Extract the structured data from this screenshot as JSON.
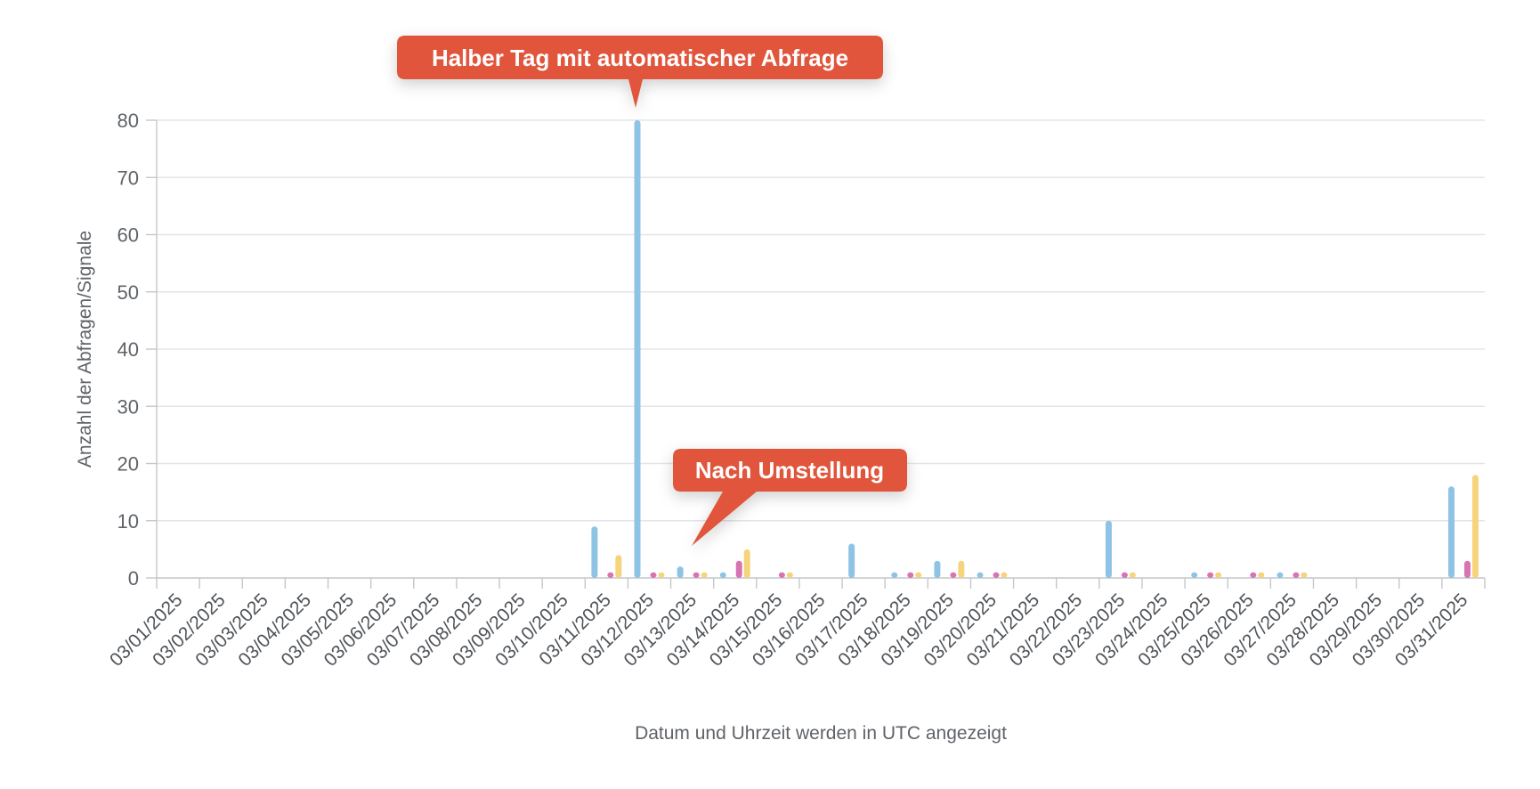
{
  "chart_data": {
    "type": "bar",
    "ylabel": "Anzahl der Abfragen/Signale",
    "xlabel": "Datum und Uhrzeit werden in UTC angezeigt",
    "ylim": [
      0,
      80
    ],
    "yticks": [
      0,
      10,
      20,
      30,
      40,
      50,
      60,
      70,
      80
    ],
    "grid": true,
    "categories": [
      "03/01/2025",
      "03/02/2025",
      "03/03/2025",
      "03/04/2025",
      "03/05/2025",
      "03/06/2025",
      "03/07/2025",
      "03/08/2025",
      "03/09/2025",
      "03/10/2025",
      "03/11/2025",
      "03/12/2025",
      "03/13/2025",
      "03/14/2025",
      "03/15/2025",
      "03/16/2025",
      "03/17/2025",
      "03/18/2025",
      "03/19/2025",
      "03/20/2025",
      "03/21/2025",
      "03/22/2025",
      "03/23/2025",
      "03/24/2025",
      "03/25/2025",
      "03/26/2025",
      "03/27/2025",
      "03/28/2025",
      "03/29/2025",
      "03/30/2025",
      "03/31/2025"
    ],
    "series": [
      {
        "color": "#8ec3e6",
        "values": [
          0,
          0,
          0,
          0,
          0,
          0,
          0,
          0,
          0,
          0,
          9,
          80,
          2,
          1,
          0,
          0,
          6,
          1,
          3,
          1,
          0,
          0,
          10,
          0,
          1,
          0,
          1,
          0,
          0,
          0,
          16
        ]
      },
      {
        "color": "#b8b8b8",
        "values": [
          0,
          0,
          0,
          0,
          0,
          0,
          0,
          0,
          0,
          0,
          0,
          0,
          0,
          0,
          0,
          0,
          0,
          0,
          0,
          0,
          0,
          0,
          0,
          0,
          0,
          0,
          0,
          0,
          0,
          0,
          0
        ]
      },
      {
        "color": "#d774b2",
        "values": [
          0,
          0,
          0,
          0,
          0,
          0,
          0,
          0,
          0,
          0,
          1,
          1,
          1,
          3,
          1,
          0,
          0,
          1,
          1,
          1,
          0,
          0,
          1,
          0,
          1,
          1,
          1,
          0,
          0,
          0,
          3
        ]
      },
      {
        "color": "#f6d47c",
        "values": [
          0,
          0,
          0,
          0,
          0,
          0,
          0,
          0,
          0,
          0,
          4,
          1,
          1,
          5,
          1,
          0,
          0,
          1,
          3,
          1,
          0,
          0,
          1,
          0,
          1,
          1,
          1,
          0,
          0,
          0,
          18
        ]
      }
    ],
    "annotations": [
      {
        "text": "Halber Tag mit automatischer Abfrage",
        "color": "#e0553a"
      },
      {
        "text": "Nach Umstellung",
        "color": "#e0553a"
      }
    ]
  }
}
